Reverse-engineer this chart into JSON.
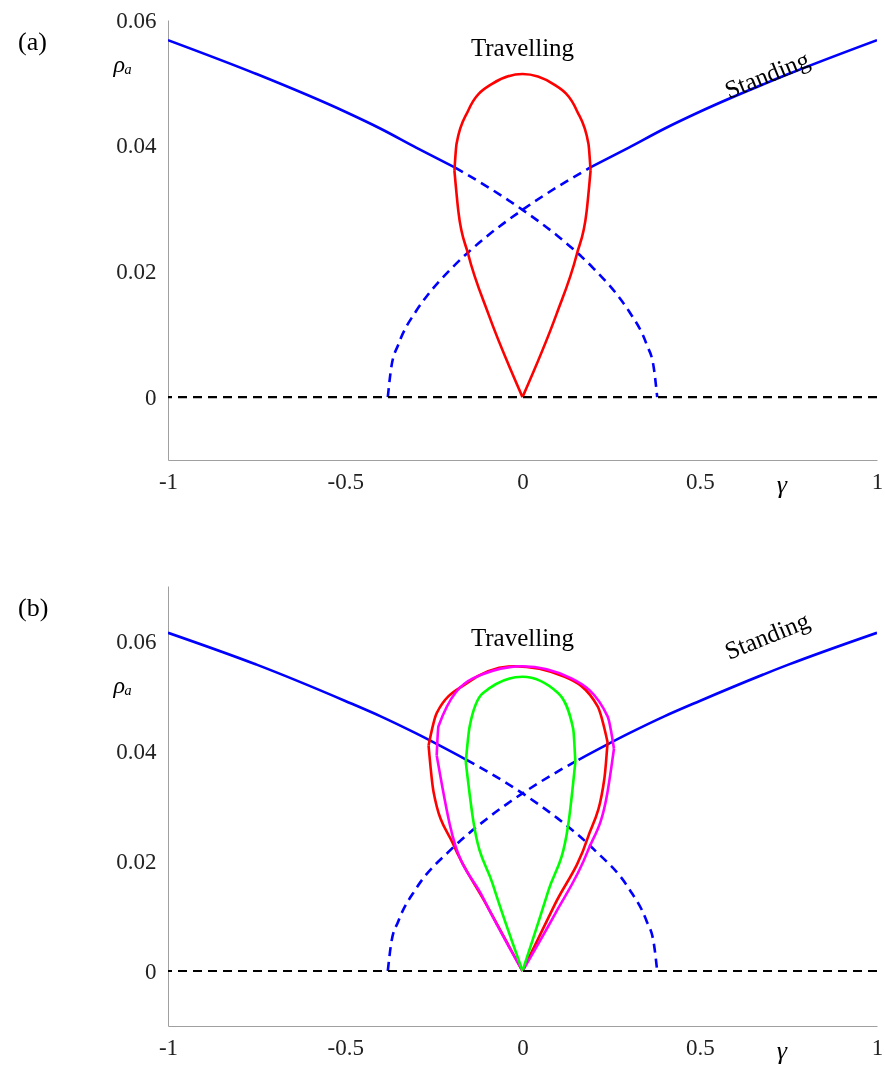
{
  "chart_data": [
    {
      "type": "line",
      "xlabel": "γ",
      "ylabel": "ρₐ",
      "xlim": [
        -1,
        1
      ],
      "ylim": [
        -0.01,
        0.06
      ],
      "xticks": [
        -1,
        -0.5,
        0,
        0.5,
        1
      ],
      "yticks": [
        0,
        0.02,
        0.04,
        0.06
      ],
      "grid": false,
      "annotations": [
        "(a)",
        "Travelling",
        "Standing"
      ],
      "ref_lines": [
        {
          "axis": "y",
          "value": 0,
          "color": "#000000",
          "line_style": "dashed"
        }
      ],
      "series": [
        {
          "color": "#0000ff",
          "line_style": "solid",
          "x": [
            -1,
            -0.75,
            -0.5,
            -0.4,
            -0.3,
            -0.19
          ],
          "values": [
            0.0568,
            0.0514,
            0.0454,
            0.0427,
            0.0397,
            0.0365
          ]
        },
        {
          "color": "#0000ff",
          "line_style": "dashed",
          "x": [
            -0.19,
            -0.1,
            0,
            0.1,
            0.2,
            0.275,
            0.3,
            0.35,
            0.37,
            0.38
          ],
          "values": [
            0.0365,
            0.0335,
            0.0298,
            0.0256,
            0.0205,
            0.0157,
            0.0137,
            0.0084,
            0.0048,
            0
          ]
        },
        {
          "color": "#0000ff",
          "line_style": "solid",
          "x": [
            0.19,
            0.3,
            0.4,
            0.5,
            0.75,
            1
          ],
          "values": [
            0.0365,
            0.0397,
            0.0427,
            0.0454,
            0.0514,
            0.0568
          ]
        },
        {
          "color": "#0000ff",
          "line_style": "dashed",
          "x": [
            -0.38,
            -0.37,
            -0.35,
            -0.3,
            -0.275,
            -0.2,
            -0.1,
            0,
            0.1,
            0.19
          ],
          "values": [
            0,
            0.0048,
            0.0084,
            0.0137,
            0.0157,
            0.0205,
            0.0256,
            0.0298,
            0.0335,
            0.0365
          ]
        },
        {
          "color": "#ff0000",
          "line_style": "solid",
          "x": [
            -0.192,
            -0.186,
            -0.153,
            -0.087,
            0,
            0.087,
            0.153,
            0.186,
            0.192
          ],
          "values": [
            0.036,
            0.0403,
            0.0456,
            0.0498,
            0.0514,
            0.0498,
            0.0456,
            0.0403,
            0.036
          ]
        },
        {
          "color": "#ff0000",
          "line_style": "solid",
          "x": [
            -0.192,
            -0.181,
            -0.153,
            -0.096,
            0
          ],
          "values": [
            0.036,
            0.0296,
            0.0227,
            0.0132,
            0
          ]
        },
        {
          "color": "#ff0000",
          "line_style": "solid",
          "x": [
            0,
            0.096,
            0.153,
            0.181,
            0.192
          ],
          "values": [
            0,
            0.0132,
            0.0227,
            0.0296,
            0.036
          ]
        }
      ]
    },
    {
      "type": "line",
      "xlabel": "γ",
      "ylabel": "ρₐ",
      "xlim": [
        -1,
        1
      ],
      "ylim": [
        -0.01,
        0.07
      ],
      "xticks": [
        -1,
        -0.5,
        0,
        0.5,
        1
      ],
      "yticks": [
        0,
        0.02,
        0.04,
        0.06
      ],
      "grid": false,
      "annotations": [
        "(b)",
        "Travelling",
        "Standing"
      ],
      "ref_lines": [
        {
          "axis": "y",
          "value": 0,
          "color": "#000000",
          "line_style": "dashed"
        }
      ],
      "series": [
        {
          "color": "#0000ff",
          "line_style": "solid",
          "x": [
            -1,
            -0.75,
            -0.5,
            -0.4,
            -0.3,
            -0.158
          ],
          "values": [
            0.0615,
            0.0557,
            0.0491,
            0.0463,
            0.0432,
            0.0384
          ]
        },
        {
          "color": "#0000ff",
          "line_style": "dashed",
          "x": [
            -0.158,
            -0.1,
            0,
            0.1,
            0.2,
            0.3,
            0.35,
            0.37,
            0.38
          ],
          "values": [
            0.0384,
            0.0363,
            0.0323,
            0.0277,
            0.0222,
            0.015,
            0.0091,
            0.0052,
            0
          ]
        },
        {
          "color": "#0000ff",
          "line_style": "solid",
          "x": [
            0.158,
            0.3,
            0.4,
            0.5,
            0.75,
            1
          ],
          "values": [
            0.0384,
            0.0432,
            0.0463,
            0.0491,
            0.0557,
            0.0615
          ]
        },
        {
          "color": "#0000ff",
          "line_style": "dashed",
          "x": [
            -0.38,
            -0.37,
            -0.35,
            -0.3,
            -0.2,
            -0.1,
            0,
            0.1,
            0.158
          ],
          "values": [
            0,
            0.0052,
            0.0091,
            0.015,
            0.0222,
            0.0277,
            0.0323,
            0.0363,
            0.0384
          ]
        },
        {
          "color": "#ff0000",
          "line_style": "solid",
          "x": [
            -0.265,
            -0.242,
            -0.158,
            -0.024,
            0.119,
            0.212,
            0.24
          ],
          "values": [
            0.041,
            0.0469,
            0.0523,
            0.0554,
            0.0535,
            0.0481,
            0.0416
          ]
        },
        {
          "color": "#ff0000",
          "line_style": "solid",
          "x": [
            -0.265,
            -0.251,
            -0.195,
            -0.103,
            0
          ],
          "values": [
            0.041,
            0.0326,
            0.023,
            0.0122,
            0
          ]
        },
        {
          "color": "#ff0000",
          "line_style": "solid",
          "x": [
            0,
            0.092,
            0.184,
            0.231,
            0.24
          ],
          "values": [
            0,
            0.0122,
            0.0242,
            0.035,
            0.0416
          ]
        },
        {
          "color": "#ff00ff",
          "line_style": "solid",
          "x": [
            -0.242,
            -0.237,
            -0.14,
            0,
            0.138,
            0.24,
            0.258
          ],
          "values": [
            0.0392,
            0.0445,
            0.0532,
            0.0554,
            0.0532,
            0.0463,
            0.0404
          ]
        },
        {
          "color": "#ff00ff",
          "line_style": "solid",
          "x": [
            -0.242,
            -0.205,
            -0.112,
            0
          ],
          "values": [
            0.0392,
            0.0266,
            0.0134,
            0
          ]
        },
        {
          "color": "#ff00ff",
          "line_style": "solid",
          "x": [
            0,
            0.092,
            0.184,
            0.24,
            0.258
          ],
          "values": [
            0,
            0.0104,
            0.0218,
            0.0326,
            0.0404
          ]
        },
        {
          "color": "#00ff00",
          "line_style": "solid",
          "x": [
            -0.16,
            -0.149,
            -0.112,
            0,
            0.101,
            0.143,
            0.149
          ],
          "values": [
            0.038,
            0.0445,
            0.0505,
            0.0535,
            0.0505,
            0.044,
            0.038
          ]
        },
        {
          "color": "#00ff00",
          "line_style": "solid",
          "x": [
            -0.16,
            -0.14,
            -0.084,
            0
          ],
          "values": [
            0.038,
            0.0278,
            0.0158,
            0
          ]
        },
        {
          "color": "#00ff00",
          "line_style": "solid",
          "x": [
            0,
            0.073,
            0.129,
            0.149
          ],
          "values": [
            0,
            0.0146,
            0.0266,
            0.038
          ]
        }
      ]
    }
  ]
}
